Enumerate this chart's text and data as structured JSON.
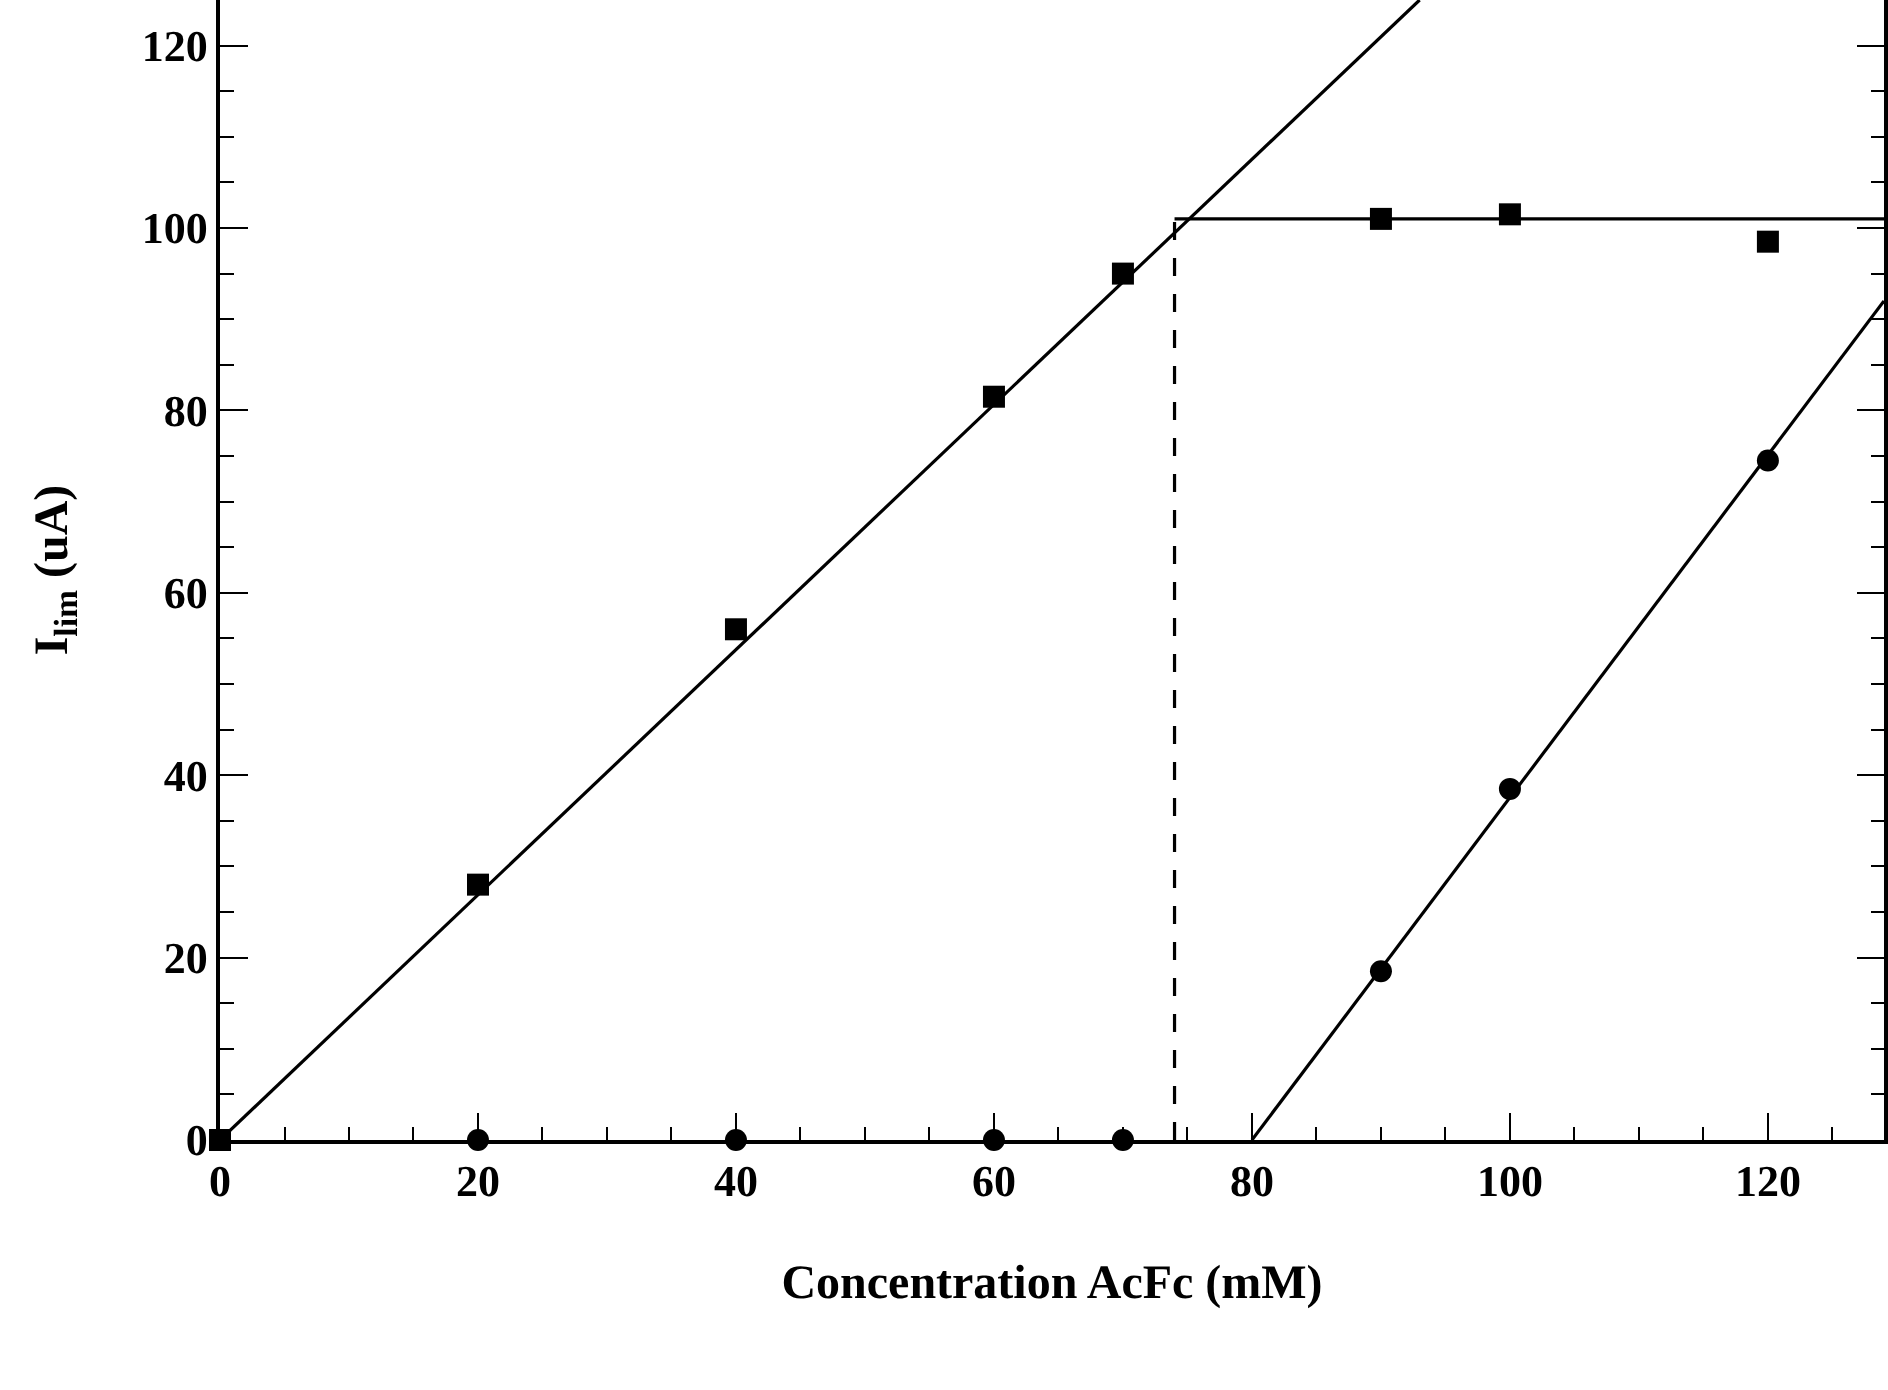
{
  "chart_data": {
    "type": "scatter",
    "xlabel": "Concentration AcFc (mM)",
    "ylabel": "I$_{lim}$ (uA)",
    "xlim": [
      0,
      129
    ],
    "ylim": [
      0,
      125
    ],
    "xticks": [
      0,
      20,
      40,
      60,
      80,
      100,
      120
    ],
    "yticks": [
      0,
      20,
      40,
      60,
      80,
      100,
      120
    ],
    "series": [
      {
        "type": "line",
        "color": "#000000",
        "marker": "none",
        "line_style": "solid",
        "x": [
          0,
          93
        ],
        "values": [
          0,
          125
        ]
      },
      {
        "type": "line",
        "color": "#000000",
        "marker": "none",
        "line_style": "solid",
        "x": [
          74,
          129
        ],
        "values": [
          101,
          101
        ]
      },
      {
        "type": "line",
        "color": "#000000",
        "marker": "none",
        "line_style": "solid",
        "x": [
          80,
          129
        ],
        "values": [
          0,
          92
        ]
      },
      {
        "type": "line",
        "color": "#000000",
        "marker": "none",
        "line_style": "dashed",
        "x": [
          74,
          74
        ],
        "values": [
          0,
          101
        ]
      },
      {
        "color": "#000000",
        "marker": "square",
        "x": [
          0,
          20,
          40,
          60,
          70,
          90,
          100,
          120
        ],
        "values": [
          0,
          28,
          56,
          81.5,
          95,
          101,
          101.5,
          98.5
        ]
      },
      {
        "color": "#000000",
        "marker": "circle",
        "x": [
          20,
          40,
          60,
          70,
          90,
          100,
          120
        ],
        "values": [
          0,
          0,
          0,
          0,
          18.5,
          38.5,
          74.5
        ]
      }
    ]
  }
}
